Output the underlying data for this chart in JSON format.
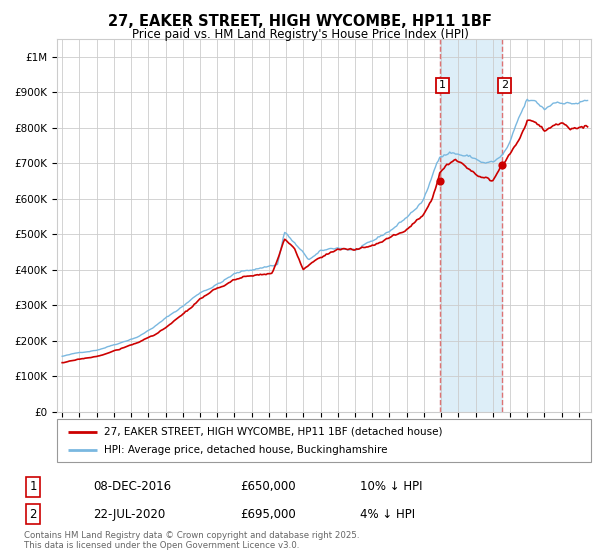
{
  "title": "27, EAKER STREET, HIGH WYCOMBE, HP11 1BF",
  "subtitle": "Price paid vs. HM Land Registry's House Price Index (HPI)",
  "ylim": [
    0,
    1050000
  ],
  "yticks": [
    0,
    100000,
    200000,
    300000,
    400000,
    500000,
    600000,
    700000,
    800000,
    900000,
    1000000
  ],
  "ytick_labels": [
    "£0",
    "£100K",
    "£200K",
    "£300K",
    "£400K",
    "£500K",
    "£600K",
    "£700K",
    "£800K",
    "£900K",
    "£1M"
  ],
  "hpi_color": "#7ab8e0",
  "price_color": "#cc0000",
  "grid_color": "#cccccc",
  "background_color": "#ffffff",
  "sale1_date": 2016.92,
  "sale1_price": 650000,
  "sale2_date": 2020.54,
  "sale2_price": 695000,
  "vline_color": "#dd6666",
  "shade_color": "#ddeef8",
  "legend_label_red": "27, EAKER STREET, HIGH WYCOMBE, HP11 1BF (detached house)",
  "legend_label_blue": "HPI: Average price, detached house, Buckinghamshire",
  "table_row1": [
    "1",
    "08-DEC-2016",
    "£650,000",
    "10% ↓ HPI"
  ],
  "table_row2": [
    "2",
    "22-JUL-2020",
    "£695,000",
    "4% ↓ HPI"
  ],
  "footnote": "Contains HM Land Registry data © Crown copyright and database right 2025.\nThis data is licensed under the Open Government Licence v3.0.",
  "xstart": 1994.7,
  "xend": 2025.7,
  "ann_box_color": "#cc0000"
}
